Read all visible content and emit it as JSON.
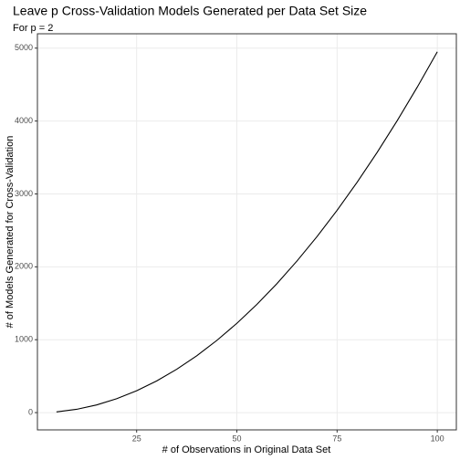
{
  "chart_data": {
    "type": "line",
    "title": "Leave p Cross-Validation Models Generated per Data Set Size",
    "subtitle": "For p = 2",
    "x_label": "# of Observations in Original Data Set",
    "y_label": "# of Models Generated for Cross-Validation",
    "x": [
      5,
      10,
      15,
      20,
      25,
      30,
      35,
      40,
      45,
      50,
      55,
      60,
      65,
      70,
      75,
      80,
      85,
      90,
      95,
      100
    ],
    "series": [
      {
        "color": "#000000",
        "values": [
          10,
          45,
          105,
          190,
          300,
          435,
          595,
          780,
          990,
          1225,
          1485,
          1770,
          2080,
          2415,
          2775,
          3160,
          3570,
          4005,
          4465,
          4950
        ]
      }
    ],
    "xlim": [
      0.25,
      104.75
    ],
    "xticks": [
      25,
      50,
      75,
      100
    ],
    "ylim": [
      -237,
      5197
    ],
    "yticks": [
      0,
      1000,
      2000,
      3000,
      4000,
      5000
    ],
    "grid": true
  }
}
